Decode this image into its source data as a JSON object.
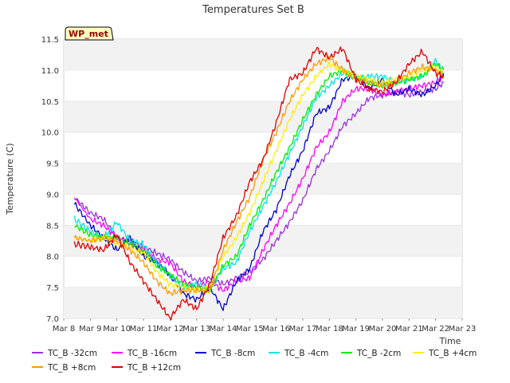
{
  "chart_data": {
    "type": "line",
    "title": "Temperatures Set B",
    "xlabel": "Time",
    "ylabel": "Temperature (C)",
    "annotation": "WP_met",
    "x_ticks": [
      "Mar 8",
      "Mar 9",
      "Mar 10",
      "Mar 11",
      "Mar 12",
      "Mar 13",
      "Mar 14",
      "Mar 15",
      "Mar 16",
      "Mar 17",
      "Mar 18",
      "Mar 19",
      "Mar 20",
      "Mar 21",
      "Mar 22",
      "Mar 23"
    ],
    "y_ticks": [
      "7.0",
      "7.5",
      "8.0",
      "8.5",
      "9.0",
      "9.5",
      "10.0",
      "10.5",
      "11.0",
      "11.5"
    ],
    "ylim": [
      7.0,
      11.5
    ],
    "xlim_days": [
      8,
      23
    ],
    "grid": "horizontal bands",
    "legend_position": "bottom",
    "series": [
      {
        "name": "TC_B -32cm",
        "color": "#9b30e0",
        "x": [
          8.4,
          9,
          9.5,
          10,
          10.5,
          11,
          11.5,
          12,
          12.5,
          13,
          13.5,
          14,
          14.5,
          15,
          15.5,
          16,
          16.5,
          17,
          17.5,
          18,
          18.5,
          19,
          19.5,
          20,
          20.5,
          21,
          21.5,
          22,
          22.3
        ],
        "y": [
          8.95,
          8.7,
          8.6,
          8.3,
          8.25,
          8.15,
          8.05,
          7.95,
          7.75,
          7.6,
          7.65,
          7.55,
          7.65,
          7.75,
          7.95,
          8.25,
          8.55,
          8.9,
          9.4,
          9.7,
          10.1,
          10.3,
          10.55,
          10.6,
          10.65,
          10.6,
          10.65,
          10.7,
          10.8
        ]
      },
      {
        "name": "TC_B -16cm",
        "color": "#ff00ff",
        "x": [
          8.4,
          9,
          9.5,
          10,
          10.5,
          11,
          11.5,
          12,
          12.5,
          13,
          13.5,
          14,
          14.5,
          15,
          15.5,
          16,
          16.5,
          17,
          17.5,
          18,
          18.5,
          19,
          19.5,
          20,
          20.5,
          21,
          21.5,
          22,
          22.3
        ],
        "y": [
          8.95,
          8.6,
          8.5,
          8.3,
          8.2,
          8.1,
          7.95,
          7.9,
          7.6,
          7.5,
          7.6,
          7.45,
          7.6,
          7.65,
          8.1,
          8.5,
          8.85,
          9.25,
          9.75,
          10.0,
          10.5,
          10.7,
          10.7,
          10.6,
          10.65,
          10.7,
          10.75,
          10.8,
          10.9
        ]
      },
      {
        "name": "TC_B -8cm",
        "color": "#0000cc",
        "x": [
          8.4,
          9,
          9.5,
          10,
          10.5,
          11,
          11.5,
          12,
          12.5,
          13,
          13.5,
          14,
          14.5,
          15,
          15.5,
          16,
          16.5,
          17,
          17.5,
          18,
          18.5,
          19,
          19.5,
          20,
          20.5,
          21,
          21.5,
          22,
          22.3
        ],
        "y": [
          8.85,
          8.5,
          8.3,
          8.1,
          8.3,
          8.0,
          7.9,
          7.7,
          7.4,
          7.3,
          7.5,
          7.15,
          7.6,
          7.8,
          8.4,
          8.75,
          9.3,
          9.7,
          10.3,
          10.4,
          10.85,
          10.9,
          10.7,
          10.85,
          10.6,
          10.7,
          10.6,
          10.75,
          10.95
        ]
      },
      {
        "name": "TC_B -4cm",
        "color": "#00e6e6",
        "x": [
          8.4,
          9,
          9.5,
          10,
          10.5,
          11,
          11.5,
          12,
          12.5,
          13,
          13.5,
          14,
          14.5,
          15,
          15.5,
          16,
          16.5,
          17,
          17.5,
          18,
          18.5,
          19,
          19.5,
          20,
          20.5,
          21,
          21.5,
          22,
          22.3
        ],
        "y": [
          8.6,
          8.4,
          8.3,
          8.55,
          8.25,
          8.2,
          7.9,
          7.7,
          7.5,
          7.55,
          7.5,
          7.8,
          7.9,
          8.4,
          8.8,
          9.2,
          9.65,
          10.1,
          10.55,
          10.75,
          10.95,
          10.85,
          10.9,
          10.9,
          10.8,
          10.85,
          10.9,
          11.15,
          10.95
        ]
      },
      {
        "name": "TC_B -2cm",
        "color": "#00ee00",
        "x": [
          8.4,
          9,
          9.5,
          10,
          10.5,
          11,
          11.5,
          12,
          12.5,
          13,
          13.5,
          14,
          14.5,
          15,
          15.5,
          16,
          16.5,
          17,
          17.5,
          18,
          18.5,
          19,
          19.5,
          20,
          20.5,
          21,
          21.5,
          22,
          22.3
        ],
        "y": [
          8.5,
          8.35,
          8.3,
          8.3,
          8.2,
          8.1,
          7.85,
          7.7,
          7.55,
          7.5,
          7.45,
          7.85,
          8.0,
          8.5,
          8.9,
          9.35,
          9.75,
          10.2,
          10.6,
          10.9,
          11.0,
          10.9,
          10.8,
          10.75,
          10.8,
          10.85,
          10.9,
          11.1,
          11.0
        ]
      },
      {
        "name": "TC_B +4cm",
        "color": "#ffee00",
        "x": [
          8.4,
          9,
          9.5,
          10,
          10.5,
          11,
          11.5,
          12,
          12.5,
          13,
          13.5,
          14,
          14.5,
          15,
          15.5,
          16,
          16.5,
          17,
          17.5,
          18,
          18.5,
          19,
          19.5,
          20,
          20.5,
          21,
          21.5,
          22,
          22.3
        ],
        "y": [
          8.3,
          8.25,
          8.3,
          8.2,
          8.15,
          8.05,
          7.75,
          7.55,
          7.5,
          7.45,
          7.5,
          8.0,
          8.3,
          8.7,
          9.2,
          9.7,
          10.2,
          10.6,
          10.9,
          11.1,
          11.0,
          10.9,
          10.85,
          10.8,
          10.85,
          10.9,
          11.0,
          11.05,
          10.95
        ]
      },
      {
        "name": "TC_B +8cm",
        "color": "#ff9900",
        "x": [
          8.4,
          9,
          9.5,
          10,
          10.5,
          11,
          11.5,
          12,
          12.5,
          13,
          13.5,
          14,
          14.5,
          15,
          15.5,
          16,
          16.5,
          17,
          17.5,
          18,
          18.5,
          19,
          19.5,
          20,
          20.5,
          21,
          21.5,
          22,
          22.3
        ],
        "y": [
          8.3,
          8.25,
          8.3,
          8.25,
          8.1,
          7.9,
          7.6,
          7.4,
          7.45,
          7.45,
          7.45,
          8.1,
          8.55,
          8.95,
          9.55,
          10.0,
          10.5,
          10.85,
          11.1,
          11.2,
          11.0,
          10.85,
          10.8,
          10.75,
          10.8,
          10.95,
          11.05,
          11.0,
          10.9
        ]
      },
      {
        "name": "TC_B +12cm",
        "color": "#e00000",
        "x": [
          8.4,
          9,
          9.5,
          10,
          10.5,
          11,
          11.5,
          12,
          12.5,
          13,
          13.5,
          14,
          14.5,
          15,
          15.5,
          16,
          16.5,
          17,
          17.5,
          18,
          18.5,
          19,
          19.5,
          20,
          20.5,
          21,
          21.5,
          22,
          22.3
        ],
        "y": [
          8.2,
          8.15,
          8.1,
          8.35,
          7.9,
          7.6,
          7.3,
          7.0,
          7.3,
          7.15,
          7.55,
          8.3,
          8.65,
          9.2,
          9.55,
          10.15,
          10.85,
          10.95,
          11.35,
          11.2,
          11.35,
          10.85,
          10.7,
          10.65,
          10.8,
          11.1,
          11.3,
          10.95,
          10.9
        ]
      }
    ]
  }
}
